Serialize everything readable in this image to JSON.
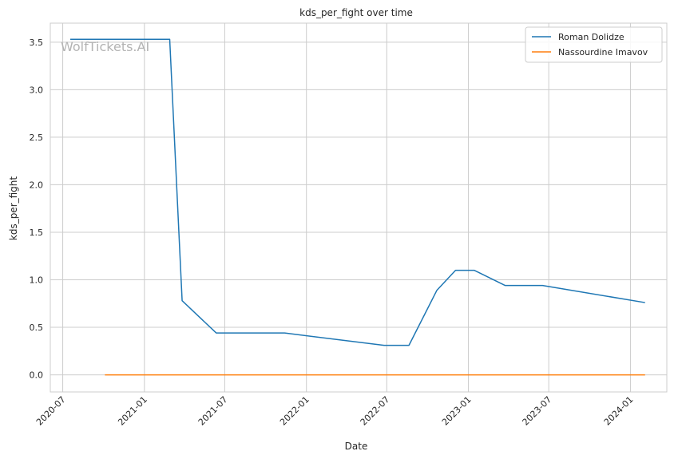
{
  "chart_data": {
    "type": "line",
    "title": "kds_per_fight over time",
    "xlabel": "Date",
    "ylabel": "kds_per_fight",
    "watermark": "WolfTickets.AI",
    "x_axis_type": "date",
    "xlim": [
      "2020-06-03",
      "2024-03-23"
    ],
    "ylim": [
      -0.18,
      3.7
    ],
    "x_ticks": [
      "2020-07-01",
      "2021-01-01",
      "2021-07-01",
      "2022-01-01",
      "2022-07-01",
      "2023-01-01",
      "2023-07-01",
      "2024-01-01"
    ],
    "x_tick_labels": [
      "2020-07",
      "2021-01",
      "2021-07",
      "2022-01",
      "2022-07",
      "2023-01",
      "2023-07",
      "2024-01"
    ],
    "y_ticks": [
      0.0,
      0.5,
      1.0,
      1.5,
      2.0,
      2.5,
      3.0,
      3.5
    ],
    "y_tick_labels": [
      "0.0",
      "0.5",
      "1.0",
      "1.5",
      "2.0",
      "2.5",
      "3.0",
      "3.5"
    ],
    "grid": true,
    "legend_position": "top-right",
    "series": [
      {
        "name": "Roman Dolidze",
        "color": "#1f77b4",
        "points": [
          {
            "x": "2020-07-18",
            "y": 3.53
          },
          {
            "x": "2021-02-27",
            "y": 3.53
          },
          {
            "x": "2021-03-27",
            "y": 0.78
          },
          {
            "x": "2021-06-12",
            "y": 0.44
          },
          {
            "x": "2021-11-13",
            "y": 0.44
          },
          {
            "x": "2022-06-25",
            "y": 0.31
          },
          {
            "x": "2022-08-20",
            "y": 0.31
          },
          {
            "x": "2022-10-22",
            "y": 0.89
          },
          {
            "x": "2022-12-03",
            "y": 1.1
          },
          {
            "x": "2023-01-14",
            "y": 1.1
          },
          {
            "x": "2023-03-25",
            "y": 0.94
          },
          {
            "x": "2023-06-17",
            "y": 0.94
          },
          {
            "x": "2024-02-03",
            "y": 0.76
          }
        ]
      },
      {
        "name": "Nassourdine Imavov",
        "color": "#ff7f0e",
        "points": [
          {
            "x": "2020-10-04",
            "y": 0.0
          },
          {
            "x": "2024-02-03",
            "y": 0.0
          }
        ]
      }
    ]
  }
}
